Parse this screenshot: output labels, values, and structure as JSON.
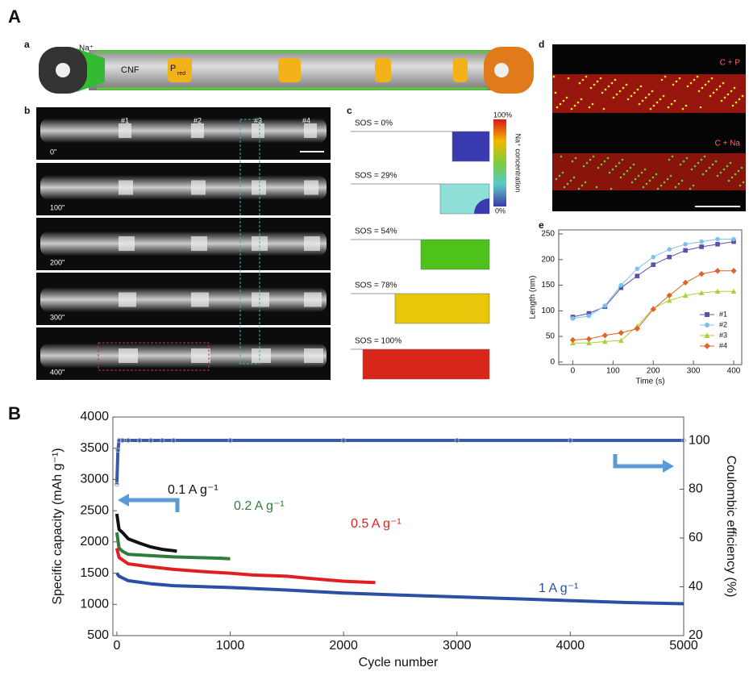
{
  "panel_labels": [
    "A",
    "B"
  ],
  "figure_a": {
    "panel_labels": [
      "a",
      "b",
      "c",
      "d",
      "e"
    ],
    "schematic": {
      "ion": "Na⁺",
      "fiber": "CNF",
      "particle": "P",
      "particle_sub": "red"
    },
    "micrograph_times": [
      "0\"",
      "100\"",
      "200\"",
      "300\"",
      "400\""
    ],
    "particle_labels": [
      "#1",
      "#2",
      "#3",
      "#4"
    ],
    "sos_labels": [
      "SOS = 0%",
      "SOS = 29%",
      "SOS = 54%",
      "SOS = 78%",
      "SOS = 100%"
    ],
    "colorbar": {
      "max": "100%",
      "min": "0%",
      "title": "Na⁺ concentration"
    },
    "map_labels": [
      "C + P",
      "C + Na"
    ]
  },
  "chart_data": [
    {
      "type": "line",
      "x_label": "Time (s)",
      "y_label": "Length (nm)",
      "x": [
        0,
        40,
        80,
        120,
        160,
        200,
        240,
        280,
        320,
        360,
        400
      ],
      "series": [
        {
          "name": "#1",
          "color": "#5b4fa8",
          "marker": "square",
          "values": [
            88,
            95,
            108,
            145,
            168,
            190,
            205,
            218,
            225,
            230,
            235
          ]
        },
        {
          "name": "#2",
          "color": "#7cc3e8",
          "marker": "circle",
          "values": [
            85,
            90,
            110,
            150,
            182,
            205,
            220,
            230,
            235,
            240,
            240
          ]
        },
        {
          "name": "#3",
          "color": "#a6d23a",
          "marker": "triangle",
          "values": [
            37,
            37,
            40,
            42,
            70,
            105,
            120,
            130,
            135,
            138,
            138
          ]
        },
        {
          "name": "#4",
          "color": "#e2622a",
          "marker": "diamond",
          "values": [
            43,
            45,
            52,
            57,
            65,
            103,
            130,
            155,
            172,
            178,
            178
          ]
        }
      ],
      "xlim": [
        -35,
        420
      ],
      "ylim": [
        -5,
        258
      ],
      "xticks": [
        0,
        100,
        200,
        300,
        400
      ],
      "yticks": [
        0,
        50,
        100,
        150,
        200,
        250
      ],
      "legend": "lower right"
    },
    {
      "type": "line",
      "x_label": "Cycle number",
      "y_label": "Specific capacity (mAh g⁻¹)",
      "y2_label": "Coulombic efficiency (%)",
      "series": [
        {
          "name": "0.1 A g⁻¹",
          "color": "#111111",
          "x": [
            0,
            20,
            50,
            100,
            200,
            300,
            400,
            500,
            530
          ],
          "values": [
            2450,
            2200,
            2150,
            2050,
            1980,
            1920,
            1880,
            1860,
            1850
          ]
        },
        {
          "name": "0.2 A g⁻¹",
          "color": "#2e7d3a",
          "x": [
            0,
            20,
            50,
            100,
            300,
            500,
            700,
            900,
            1000
          ],
          "values": [
            2150,
            1900,
            1850,
            1800,
            1780,
            1760,
            1750,
            1740,
            1730
          ]
        },
        {
          "name": "0.5 A g⁻¹",
          "color": "#e02020",
          "x": [
            0,
            20,
            100,
            300,
            500,
            800,
            1000,
            1200,
            1500,
            1800,
            2000,
            2280
          ],
          "values": [
            1900,
            1750,
            1650,
            1600,
            1560,
            1520,
            1500,
            1470,
            1450,
            1400,
            1370,
            1350
          ]
        },
        {
          "name": "1 A g⁻¹",
          "color": "#2a4fa5",
          "x": [
            0,
            20,
            100,
            300,
            500,
            1000,
            1500,
            2000,
            2500,
            3000,
            3500,
            4000,
            4500,
            5000
          ],
          "values": [
            1500,
            1450,
            1380,
            1330,
            1300,
            1270,
            1230,
            1180,
            1150,
            1120,
            1090,
            1060,
            1030,
            1010
          ]
        },
        {
          "color": "#3a5ba8",
          "axis": "y2",
          "marker": "circle",
          "x": [
            0,
            10,
            20,
            50,
            100,
            200,
            300,
            400,
            500,
            1000,
            2000,
            3000,
            4000,
            5000
          ],
          "values": [
            82,
            96,
            100,
            100,
            100,
            100,
            100,
            100,
            100,
            100,
            100,
            100,
            100,
            100
          ]
        }
      ],
      "xlim": [
        -35,
        5000
      ],
      "ylim": [
        500,
        4000
      ],
      "y2lim": [
        20,
        109.6
      ],
      "xticks": [
        0,
        1000,
        2000,
        3000,
        4000,
        5000
      ],
      "yticks": [
        500,
        1000,
        1500,
        2000,
        2500,
        3000,
        3500,
        4000
      ],
      "y2ticks": [
        20,
        40,
        60,
        80,
        100
      ]
    }
  ]
}
